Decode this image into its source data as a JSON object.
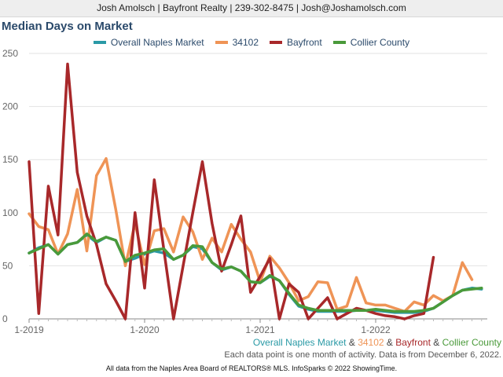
{
  "header": {
    "text": "Josh Amolsch | Bayfront Realty | 239-302-8475 | Josh@Joshamolsch.com"
  },
  "colors": {
    "overall": "#2a9aa6",
    "zip": "#ef9456",
    "bayfront": "#a8282a",
    "collier": "#4a9a3a"
  },
  "footer": {
    "series_line": {
      "overall": "Overall Naples Market",
      "amp1": " & ",
      "zip": "34102",
      "amp2": " & ",
      "bayfront": "Bayfront",
      "amp3": " & ",
      "collier": "Collier County"
    },
    "note": "Each data point is one month of activity. Data is from December 6, 2022.",
    "credit": "All data from the Naples Area Board of REALTORS® MLS. InfoSparks © 2022 ShowingTime."
  },
  "chart_data": {
    "type": "line",
    "title": "Median Days on Market",
    "x_start": "2019-01",
    "x_tick_labels": [
      "1-2019",
      "1-2020",
      "1-2021",
      "1-2022"
    ],
    "x_tick_indices": [
      0,
      12,
      24,
      36
    ],
    "ylim": [
      0,
      250
    ],
    "yticks": [
      0,
      50,
      100,
      150,
      200,
      250
    ],
    "grid": "horizontal",
    "legend_position": "top",
    "series": [
      {
        "name": "Overall Naples Market",
        "color_key": "overall",
        "values": [
          62,
          67,
          70,
          61,
          70,
          72,
          79,
          72,
          77,
          74,
          54,
          57,
          61,
          64,
          62,
          56,
          60,
          68,
          66,
          53,
          46,
          49,
          45,
          35,
          34,
          40,
          36,
          23,
          12,
          9,
          7,
          7,
          7,
          7,
          8,
          8,
          8,
          7,
          6,
          6,
          6,
          7,
          10,
          16,
          22,
          27,
          29,
          28
        ]
      },
      {
        "name": "34102",
        "color_key": "zip",
        "values": [
          99,
          87,
          84,
          61,
          80,
          122,
          64,
          135,
          151,
          103,
          50,
          90,
          51,
          83,
          85,
          63,
          96,
          82,
          56,
          76,
          63,
          89,
          75,
          63,
          35,
          59,
          48,
          34,
          17,
          21,
          35,
          34,
          9,
          12,
          39,
          15,
          13,
          13,
          10,
          7,
          16,
          13,
          22,
          17,
          22,
          53,
          37
        ]
      },
      {
        "name": "Bayfront",
        "color_key": "bayfront",
        "values": [
          148,
          5,
          125,
          79,
          240,
          138,
          97,
          70,
          33,
          17,
          0,
          100,
          29,
          131,
          65,
          0,
          50,
          100,
          148,
          90,
          45,
          70,
          97,
          25,
          40,
          57,
          0,
          33,
          25,
          0,
          10,
          20,
          0,
          5,
          10,
          8,
          5,
          3,
          2,
          0,
          3,
          5,
          58
        ]
      },
      {
        "name": "Collier County",
        "color_key": "collier",
        "values": [
          62,
          66,
          70,
          61,
          70,
          72,
          80,
          73,
          77,
          74,
          54,
          60,
          62,
          65,
          66,
          56,
          60,
          69,
          68,
          53,
          47,
          49,
          45,
          35,
          34,
          41,
          36,
          24,
          13,
          10,
          8,
          8,
          8,
          8,
          8,
          8,
          9,
          8,
          7,
          7,
          7,
          8,
          10,
          16,
          22,
          27,
          28,
          29
        ]
      }
    ]
  }
}
